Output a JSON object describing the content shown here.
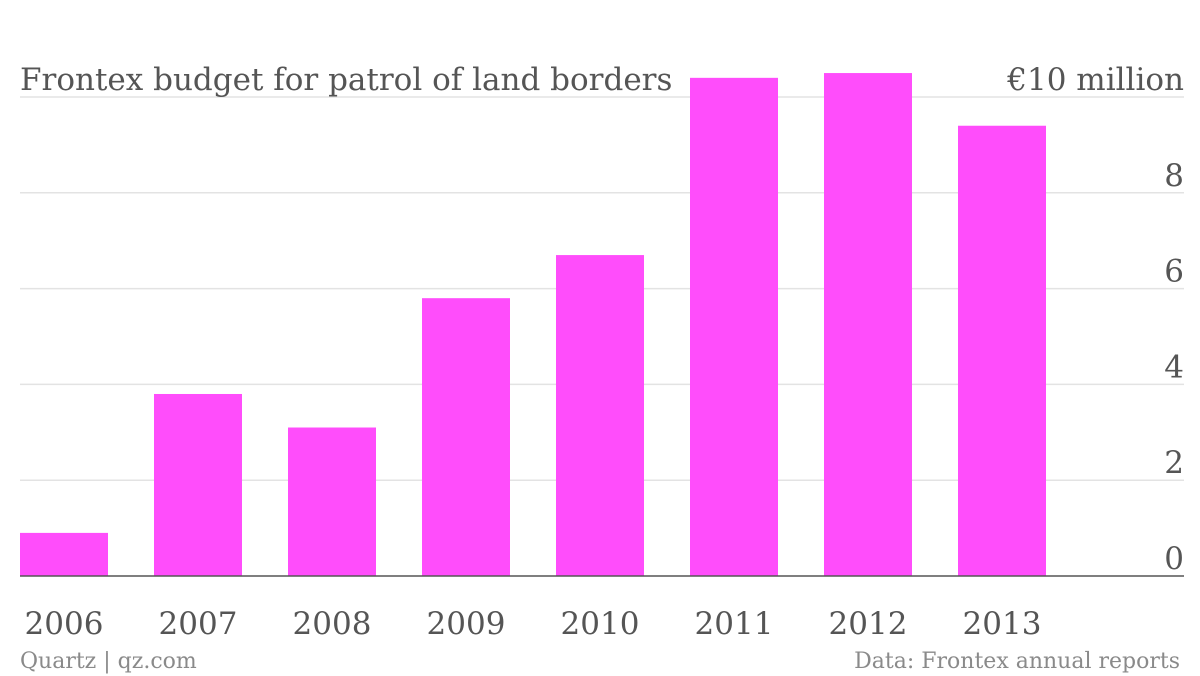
{
  "chart_data": {
    "type": "bar",
    "title": "Frontex budget for patrol of land borders",
    "unit_label": "€10 million",
    "xlabel": "",
    "ylabel": "",
    "categories": [
      "2006",
      "2007",
      "2008",
      "2009",
      "2010",
      "2011",
      "2012",
      "2013"
    ],
    "values": [
      0.9,
      3.8,
      3.1,
      5.8,
      6.7,
      10.4,
      10.5,
      9.4
    ],
    "ylim": [
      0,
      10
    ],
    "yticks": [
      0,
      2,
      4,
      6,
      8
    ],
    "y_axis_position": "right",
    "grid": true,
    "legend": "none",
    "bar_color": "#ff4dfb"
  },
  "footer": {
    "source_left": "Quartz | qz.com",
    "source_right": "Data: Frontex annual reports"
  },
  "colors": {
    "bar": "#ff4dfb",
    "text": "#555555",
    "footer_text": "#8a8a8a",
    "grid": "#e3e3e3"
  }
}
